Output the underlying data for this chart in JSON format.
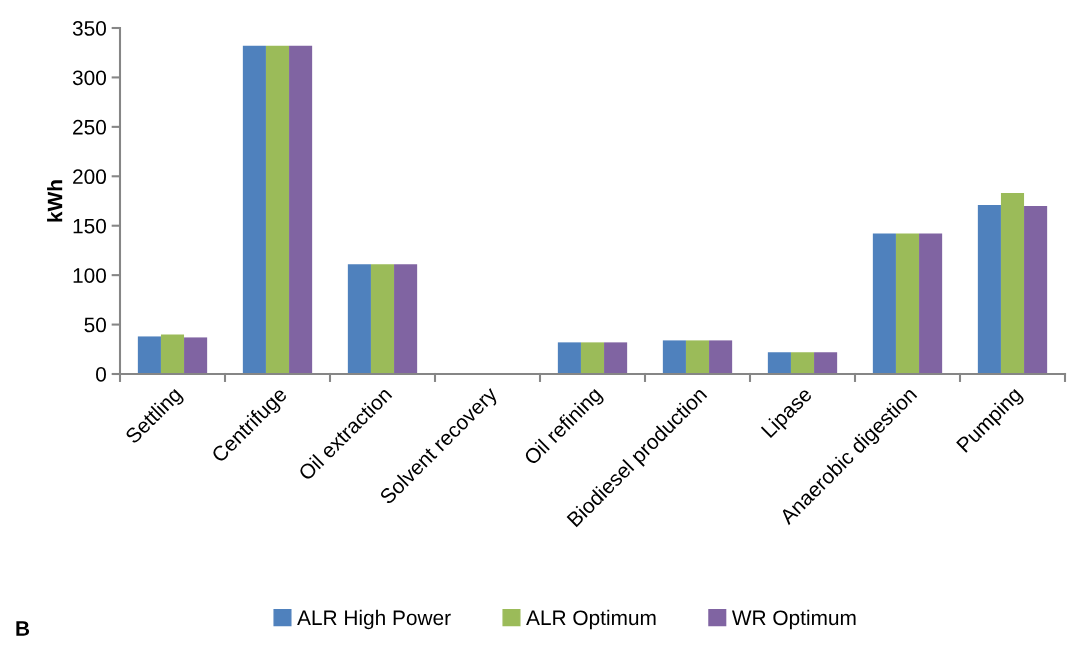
{
  "chart_data": {
    "type": "bar",
    "ylabel": "kWh",
    "categories": [
      "Settling",
      "Centrifuge",
      "Oil extraction",
      "Solvent recovery",
      "Oil refining",
      "Biodiesel production",
      "Lipase",
      "Anaerobic digestion",
      "Pumping"
    ],
    "series": [
      {
        "name": "ALR High Power",
        "color": "#4f81bd",
        "values": [
          38,
          332,
          111,
          0,
          32,
          34,
          22,
          142,
          171
        ]
      },
      {
        "name": "ALR Optimum",
        "color": "#9bbb59",
        "values": [
          40,
          332,
          111,
          0,
          32,
          34,
          22,
          142,
          183
        ]
      },
      {
        "name": "WR Optimum",
        "color": "#8064a2",
        "values": [
          37,
          332,
          111,
          0,
          32,
          34,
          22,
          142,
          170
        ]
      }
    ],
    "ylim": [
      0,
      350
    ],
    "yticks": [
      0,
      50,
      100,
      150,
      200,
      250,
      300,
      350
    ],
    "grid": false,
    "legend": "bottom",
    "annotations": [
      "B"
    ]
  }
}
